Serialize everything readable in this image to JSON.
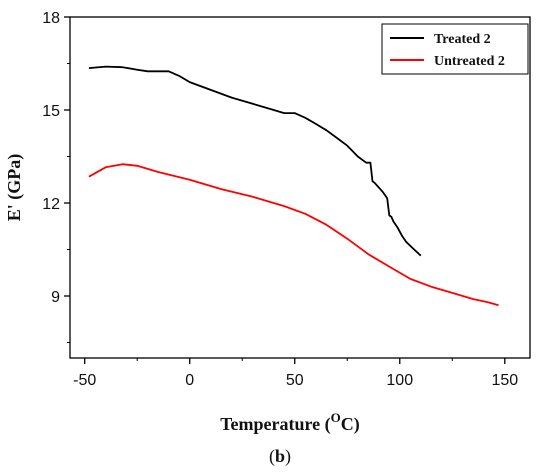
{
  "chart_data": {
    "type": "line",
    "xlabel_main": "Temperature (",
    "xlabel_sup": "O",
    "xlabel_end": "C)",
    "ylabel": "E' (GPa)",
    "caption_open": "(",
    "caption_bold": "b",
    "caption_close": ")",
    "xlim": [
      -57,
      162
    ],
    "ylim": [
      7.0,
      18.0
    ],
    "xticks": [
      -50,
      0,
      50,
      100,
      150
    ],
    "xtick_labels": [
      "-50",
      "0",
      "50",
      "100",
      "150"
    ],
    "yticks": [
      9,
      12,
      15,
      18
    ],
    "ytick_labels": [
      "9",
      "12",
      "15",
      "18"
    ],
    "grid": false,
    "legend_position": "top-right",
    "series": [
      {
        "name": "Treated 2",
        "color": "#000000",
        "x": [
          -48,
          -40,
          -32,
          -25,
          -20,
          -15,
          -10,
          -5,
          0,
          10,
          20,
          30,
          40,
          45,
          50,
          55,
          60,
          65,
          70,
          75,
          80,
          84,
          86,
          87,
          88,
          90,
          92,
          94,
          95,
          96,
          97,
          99,
          101,
          103,
          106,
          110
        ],
        "y": [
          16.35,
          16.4,
          16.38,
          16.3,
          16.25,
          16.25,
          16.25,
          16.1,
          15.9,
          15.65,
          15.4,
          15.2,
          15.0,
          14.9,
          14.9,
          14.75,
          14.55,
          14.35,
          14.1,
          13.85,
          13.5,
          13.3,
          13.3,
          12.7,
          12.65,
          12.5,
          12.35,
          12.15,
          11.6,
          11.55,
          11.4,
          11.2,
          10.95,
          10.75,
          10.55,
          10.3
        ]
      },
      {
        "name": "Untreated 2",
        "color": "#ff0000",
        "x": [
          -48,
          -40,
          -32,
          -25,
          -15,
          0,
          15,
          30,
          45,
          55,
          65,
          75,
          85,
          95,
          105,
          115,
          125,
          135,
          142,
          147
        ],
        "y": [
          12.85,
          13.15,
          13.25,
          13.2,
          13.0,
          12.75,
          12.45,
          12.2,
          11.9,
          11.65,
          11.3,
          10.85,
          10.35,
          9.95,
          9.55,
          9.3,
          9.1,
          8.9,
          8.8,
          8.7
        ]
      }
    ]
  }
}
